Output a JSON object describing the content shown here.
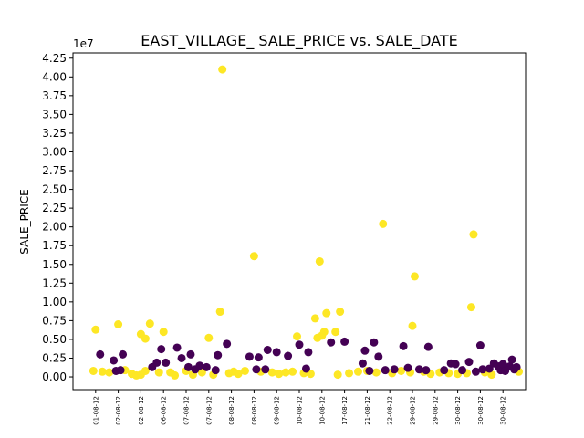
{
  "chart_data": {
    "type": "scatter",
    "title": "EAST_VILLAGE_ SALE_PRICE vs. SALE_DATE",
    "xlabel": "",
    "ylabel": "SALE_PRICE",
    "y_offset_label": "1e7",
    "ylim": [
      -1700000,
      43200000
    ],
    "yticks": [
      0,
      2500000,
      5000000,
      7500000,
      10000000,
      12500000,
      15000000,
      17500000,
      20000000,
      22500000,
      25000000,
      27500000,
      30000000,
      32500000,
      35000000,
      37500000,
      40000000,
      42500000
    ],
    "ytick_labels": [
      "0.00",
      "0.25",
      "0.50",
      "0.75",
      "1.00",
      "1.25",
      "1.50",
      "1.75",
      "2.00",
      "2.25",
      "2.50",
      "2.75",
      "3.00",
      "3.25",
      "3.50",
      "3.75",
      "4.00",
      "4.25"
    ],
    "x_index_range": [
      -1,
      19
    ],
    "xtick_labels": [
      "01-08-12",
      "02-08-12",
      "02-08-12",
      "06-08-12",
      "07-08-12",
      "07-08-12",
      "08-08-12",
      "08-08-12",
      "09-08-12",
      "10-08-12",
      "10-08-12",
      "17-08-12",
      "21-08-12",
      "22-08-12",
      "29-08-12",
      "29-08-12",
      "30-08-12",
      "30-08-12",
      "30-08-12"
    ],
    "grid": false,
    "series_colors": {
      "yellow": "#fde725",
      "purple": "#440154"
    },
    "points": [
      {
        "x": -0.1,
        "y": 800000,
        "c": "yellow"
      },
      {
        "x": 0.0,
        "y": 6300000,
        "c": "yellow"
      },
      {
        "x": 0.3,
        "y": 700000,
        "c": "yellow"
      },
      {
        "x": 0.6,
        "y": 600000,
        "c": "yellow"
      },
      {
        "x": 1.0,
        "y": 7000000,
        "c": "yellow"
      },
      {
        "x": 1.3,
        "y": 900000,
        "c": "yellow"
      },
      {
        "x": 1.6,
        "y": 400000,
        "c": "yellow"
      },
      {
        "x": 1.8,
        "y": 200000,
        "c": "yellow"
      },
      {
        "x": 2.0,
        "y": 300000,
        "c": "yellow"
      },
      {
        "x": 2.2,
        "y": 800000,
        "c": "yellow"
      },
      {
        "x": 2.0,
        "y": 5700000,
        "c": "yellow"
      },
      {
        "x": 2.2,
        "y": 5100000,
        "c": "yellow"
      },
      {
        "x": 2.4,
        "y": 7100000,
        "c": "yellow"
      },
      {
        "x": 2.8,
        "y": 600000,
        "c": "yellow"
      },
      {
        "x": 3.0,
        "y": 6000000,
        "c": "yellow"
      },
      {
        "x": 3.3,
        "y": 600000,
        "c": "yellow"
      },
      {
        "x": 3.5,
        "y": 200000,
        "c": "yellow"
      },
      {
        "x": 4.0,
        "y": 800000,
        "c": "yellow"
      },
      {
        "x": 4.3,
        "y": 300000,
        "c": "yellow"
      },
      {
        "x": 4.7,
        "y": 600000,
        "c": "yellow"
      },
      {
        "x": 5.0,
        "y": 5200000,
        "c": "yellow"
      },
      {
        "x": 5.2,
        "y": 300000,
        "c": "yellow"
      },
      {
        "x": 5.5,
        "y": 8700000,
        "c": "yellow"
      },
      {
        "x": 5.6,
        "y": 41000000,
        "c": "yellow"
      },
      {
        "x": 5.9,
        "y": 500000,
        "c": "yellow"
      },
      {
        "x": 6.1,
        "y": 700000,
        "c": "yellow"
      },
      {
        "x": 6.3,
        "y": 400000,
        "c": "yellow"
      },
      {
        "x": 6.6,
        "y": 800000,
        "c": "yellow"
      },
      {
        "x": 7.0,
        "y": 16100000,
        "c": "yellow"
      },
      {
        "x": 7.3,
        "y": 700000,
        "c": "yellow"
      },
      {
        "x": 7.8,
        "y": 600000,
        "c": "yellow"
      },
      {
        "x": 8.1,
        "y": 400000,
        "c": "yellow"
      },
      {
        "x": 8.4,
        "y": 600000,
        "c": "yellow"
      },
      {
        "x": 8.7,
        "y": 700000,
        "c": "yellow"
      },
      {
        "x": 8.9,
        "y": 5400000,
        "c": "yellow"
      },
      {
        "x": 9.2,
        "y": 500000,
        "c": "yellow"
      },
      {
        "x": 9.5,
        "y": 400000,
        "c": "yellow"
      },
      {
        "x": 9.7,
        "y": 7800000,
        "c": "yellow"
      },
      {
        "x": 9.8,
        "y": 5200000,
        "c": "yellow"
      },
      {
        "x": 9.9,
        "y": 15400000,
        "c": "yellow"
      },
      {
        "x": 10.0,
        "y": 5500000,
        "c": "yellow"
      },
      {
        "x": 10.1,
        "y": 6000000,
        "c": "yellow"
      },
      {
        "x": 10.2,
        "y": 8500000,
        "c": "yellow"
      },
      {
        "x": 10.6,
        "y": 6000000,
        "c": "yellow"
      },
      {
        "x": 10.7,
        "y": 300000,
        "c": "yellow"
      },
      {
        "x": 10.8,
        "y": 8700000,
        "c": "yellow"
      },
      {
        "x": 11.2,
        "y": 500000,
        "c": "yellow"
      },
      {
        "x": 11.6,
        "y": 700000,
        "c": "yellow"
      },
      {
        "x": 12.0,
        "y": 800000,
        "c": "yellow"
      },
      {
        "x": 12.4,
        "y": 600000,
        "c": "yellow"
      },
      {
        "x": 12.7,
        "y": 20400000,
        "c": "yellow"
      },
      {
        "x": 13.1,
        "y": 500000,
        "c": "yellow"
      },
      {
        "x": 13.5,
        "y": 800000,
        "c": "yellow"
      },
      {
        "x": 13.9,
        "y": 600000,
        "c": "yellow"
      },
      {
        "x": 14.0,
        "y": 6800000,
        "c": "yellow"
      },
      {
        "x": 14.1,
        "y": 13400000,
        "c": "yellow"
      },
      {
        "x": 14.5,
        "y": 700000,
        "c": "yellow"
      },
      {
        "x": 14.8,
        "y": 400000,
        "c": "yellow"
      },
      {
        "x": 15.2,
        "y": 600000,
        "c": "yellow"
      },
      {
        "x": 15.6,
        "y": 500000,
        "c": "yellow"
      },
      {
        "x": 16.0,
        "y": 400000,
        "c": "yellow"
      },
      {
        "x": 16.4,
        "y": 500000,
        "c": "yellow"
      },
      {
        "x": 16.6,
        "y": 9300000,
        "c": "yellow"
      },
      {
        "x": 16.7,
        "y": 19000000,
        "c": "yellow"
      },
      {
        "x": 17.2,
        "y": 600000,
        "c": "yellow"
      },
      {
        "x": 17.5,
        "y": 300000,
        "c": "yellow"
      },
      {
        "x": 18.7,
        "y": 700000,
        "c": "yellow"
      },
      {
        "x": 0.2,
        "y": 3000000,
        "c": "purple"
      },
      {
        "x": 0.8,
        "y": 2200000,
        "c": "purple"
      },
      {
        "x": 0.9,
        "y": 800000,
        "c": "purple"
      },
      {
        "x": 1.1,
        "y": 900000,
        "c": "purple"
      },
      {
        "x": 1.2,
        "y": 3000000,
        "c": "purple"
      },
      {
        "x": 2.5,
        "y": 1300000,
        "c": "purple"
      },
      {
        "x": 2.7,
        "y": 1900000,
        "c": "purple"
      },
      {
        "x": 2.9,
        "y": 3700000,
        "c": "purple"
      },
      {
        "x": 3.1,
        "y": 1900000,
        "c": "purple"
      },
      {
        "x": 3.6,
        "y": 3900000,
        "c": "purple"
      },
      {
        "x": 3.8,
        "y": 2500000,
        "c": "purple"
      },
      {
        "x": 4.1,
        "y": 1300000,
        "c": "purple"
      },
      {
        "x": 4.2,
        "y": 3000000,
        "c": "purple"
      },
      {
        "x": 4.4,
        "y": 1000000,
        "c": "purple"
      },
      {
        "x": 4.6,
        "y": 1500000,
        "c": "purple"
      },
      {
        "x": 4.9,
        "y": 1300000,
        "c": "purple"
      },
      {
        "x": 5.3,
        "y": 900000,
        "c": "purple"
      },
      {
        "x": 5.4,
        "y": 2900000,
        "c": "purple"
      },
      {
        "x": 5.8,
        "y": 4400000,
        "c": "purple"
      },
      {
        "x": 6.8,
        "y": 2700000,
        "c": "purple"
      },
      {
        "x": 7.1,
        "y": 1000000,
        "c": "purple"
      },
      {
        "x": 7.2,
        "y": 2600000,
        "c": "purple"
      },
      {
        "x": 7.5,
        "y": 1000000,
        "c": "purple"
      },
      {
        "x": 7.6,
        "y": 3600000,
        "c": "purple"
      },
      {
        "x": 8.0,
        "y": 3300000,
        "c": "purple"
      },
      {
        "x": 8.5,
        "y": 2800000,
        "c": "purple"
      },
      {
        "x": 9.0,
        "y": 4300000,
        "c": "purple"
      },
      {
        "x": 9.3,
        "y": 1100000,
        "c": "purple"
      },
      {
        "x": 9.4,
        "y": 3300000,
        "c": "purple"
      },
      {
        "x": 10.4,
        "y": 4600000,
        "c": "purple"
      },
      {
        "x": 11.0,
        "y": 4700000,
        "c": "purple"
      },
      {
        "x": 11.8,
        "y": 1800000,
        "c": "purple"
      },
      {
        "x": 11.9,
        "y": 3500000,
        "c": "purple"
      },
      {
        "x": 12.1,
        "y": 800000,
        "c": "purple"
      },
      {
        "x": 12.3,
        "y": 4600000,
        "c": "purple"
      },
      {
        "x": 12.5,
        "y": 2700000,
        "c": "purple"
      },
      {
        "x": 12.8,
        "y": 900000,
        "c": "purple"
      },
      {
        "x": 13.2,
        "y": 1000000,
        "c": "purple"
      },
      {
        "x": 13.6,
        "y": 4100000,
        "c": "purple"
      },
      {
        "x": 13.8,
        "y": 1200000,
        "c": "purple"
      },
      {
        "x": 14.3,
        "y": 1000000,
        "c": "purple"
      },
      {
        "x": 14.6,
        "y": 900000,
        "c": "purple"
      },
      {
        "x": 14.7,
        "y": 4000000,
        "c": "purple"
      },
      {
        "x": 15.4,
        "y": 900000,
        "c": "purple"
      },
      {
        "x": 15.7,
        "y": 1800000,
        "c": "purple"
      },
      {
        "x": 15.9,
        "y": 1700000,
        "c": "purple"
      },
      {
        "x": 16.2,
        "y": 900000,
        "c": "purple"
      },
      {
        "x": 16.5,
        "y": 2000000,
        "c": "purple"
      },
      {
        "x": 16.8,
        "y": 700000,
        "c": "purple"
      },
      {
        "x": 17.0,
        "y": 4200000,
        "c": "purple"
      },
      {
        "x": 17.1,
        "y": 1000000,
        "c": "purple"
      },
      {
        "x": 17.4,
        "y": 1100000,
        "c": "purple"
      },
      {
        "x": 17.6,
        "y": 1800000,
        "c": "purple"
      },
      {
        "x": 17.8,
        "y": 1400000,
        "c": "purple"
      },
      {
        "x": 17.9,
        "y": 900000,
        "c": "purple"
      },
      {
        "x": 18.0,
        "y": 1700000,
        "c": "purple"
      },
      {
        "x": 18.1,
        "y": 800000,
        "c": "purple"
      },
      {
        "x": 18.3,
        "y": 1400000,
        "c": "purple"
      },
      {
        "x": 18.4,
        "y": 2300000,
        "c": "purple"
      },
      {
        "x": 18.5,
        "y": 1000000,
        "c": "purple"
      },
      {
        "x": 18.6,
        "y": 1300000,
        "c": "purple"
      }
    ]
  }
}
